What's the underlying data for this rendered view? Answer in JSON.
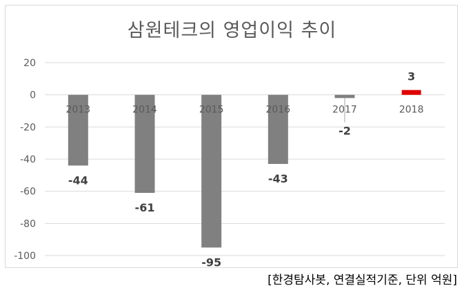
{
  "chart_data": {
    "type": "bar",
    "title": "삼원테크의 영업이익 추이",
    "categories": [
      "2013",
      "2014",
      "2015",
      "2016",
      "2017",
      "2018"
    ],
    "values": [
      -44,
      -61,
      -95,
      -43,
      -2,
      3
    ],
    "data_labels": [
      "-44",
      "-61",
      "-95",
      "-43",
      "-2",
      "3"
    ],
    "ylim": [
      -100,
      20
    ],
    "yticks": [
      20,
      0,
      -20,
      -40,
      -60,
      -80,
      -100
    ],
    "grid": true,
    "colors": {
      "default": "#808080",
      "highlight": "#e00000",
      "grid": "#d9d9d9",
      "axis_text": "#595959"
    },
    "highlight_index": 5
  },
  "source_note": "[한경탐사봇, 연결실적기준, 단위 억원]"
}
